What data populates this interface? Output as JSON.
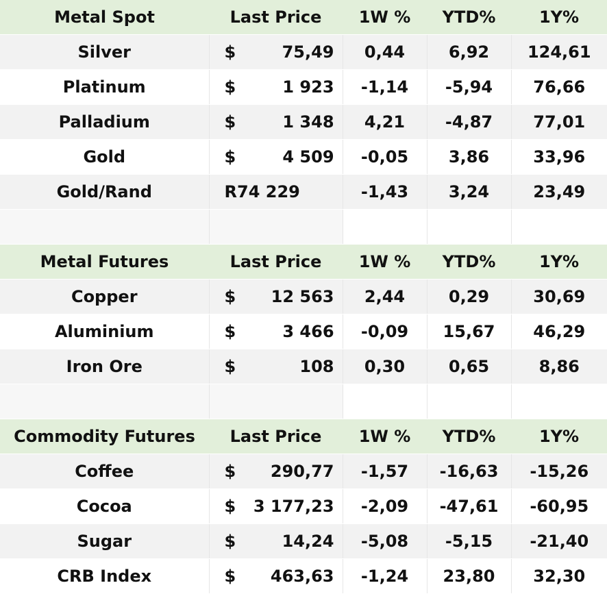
{
  "colors": {
    "header_bg": "#e2efda",
    "row_alt_bg": "#f2f2f2",
    "positive": "#7fba2a",
    "negative": "#a50e0e"
  },
  "sections": [
    {
      "title": "Metal Spot",
      "col_last_price": "Last Price",
      "col_1w": "1W %",
      "col_ytd": "YTD%",
      "col_1y": "1Y%",
      "rows": [
        {
          "name": "Silver",
          "currency": "$",
          "price": "75,49",
          "w1": "0,44",
          "ytd": "6,92",
          "y1": "124,61"
        },
        {
          "name": "Platinum",
          "currency": "$",
          "price": "1 923",
          "w1": "-1,14",
          "ytd": "-5,94",
          "y1": "76,66"
        },
        {
          "name": "Palladium",
          "currency": "$",
          "price": "1 348",
          "w1": "4,21",
          "ytd": "-4,87",
          "y1": "77,01"
        },
        {
          "name": "Gold",
          "currency": "$",
          "price": "4 509",
          "w1": "-0,05",
          "ytd": "3,86",
          "y1": "33,96"
        },
        {
          "name": "Gold/Rand",
          "currency": "R",
          "price": "74 229",
          "w1": "-1,43",
          "ytd": "3,24",
          "y1": "23,49"
        }
      ]
    },
    {
      "title": "Metal Futures",
      "col_last_price": "Last Price",
      "col_1w": "1W %",
      "col_ytd": "YTD%",
      "col_1y": "1Y%",
      "rows": [
        {
          "name": "Copper",
          "currency": "$",
          "price": "12 563",
          "w1": "2,44",
          "ytd": "0,29",
          "y1": "30,69"
        },
        {
          "name": "Aluminium",
          "currency": "$",
          "price": "3 466",
          "w1": "-0,09",
          "ytd": "15,67",
          "y1": "46,29"
        },
        {
          "name": "Iron Ore",
          "currency": "$",
          "price": "108",
          "w1": "0,30",
          "ytd": "0,65",
          "y1": "8,86"
        }
      ]
    },
    {
      "title": "Commodity Futures",
      "col_last_price": "Last Price",
      "col_1w": "1W %",
      "col_ytd": "YTD%",
      "col_1y": "1Y%",
      "rows": [
        {
          "name": "Coffee",
          "currency": "$",
          "price": "290,77",
          "w1": "-1,57",
          "ytd": "-16,63",
          "y1": "-15,26"
        },
        {
          "name": "Cocoa",
          "currency": "$",
          "price": "3 177,23",
          "w1": "-2,09",
          "ytd": "-47,61",
          "y1": "-60,95"
        },
        {
          "name": "Sugar",
          "currency": "$",
          "price": "14,24",
          "w1": "-5,08",
          "ytd": "-5,15",
          "y1": "-21,40"
        },
        {
          "name": "CRB Index",
          "currency": "$",
          "price": "463,63",
          "w1": "-1,24",
          "ytd": "23,80",
          "y1": "32,30"
        }
      ]
    }
  ]
}
